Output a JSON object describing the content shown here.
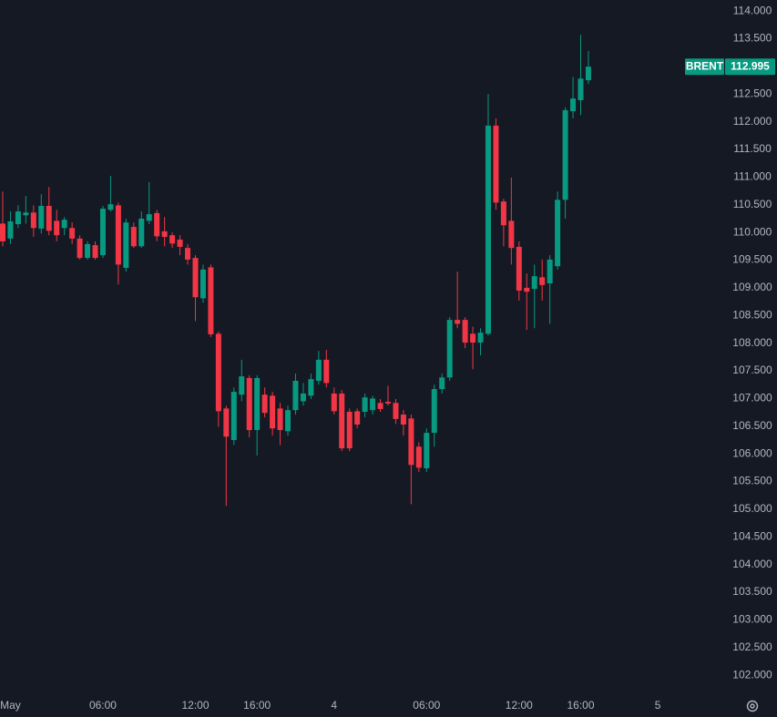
{
  "chart_data": {
    "type": "candlestick",
    "series_name": "BRENT",
    "last_price_label": "112.995",
    "up_color": "#089981",
    "down_color": "#f23645",
    "categories": [
      null,
      "May",
      null,
      null,
      null,
      null,
      null,
      null,
      null,
      null,
      null,
      null,
      null,
      "06:00",
      null,
      null,
      null,
      null,
      null,
      null,
      null,
      null,
      null,
      null,
      null,
      "12:00",
      null,
      null,
      null,
      null,
      null,
      null,
      null,
      "16:00",
      null,
      null,
      null,
      null,
      null,
      null,
      null,
      null,
      null,
      "4",
      null,
      null,
      null,
      null,
      null,
      null,
      null,
      null,
      null,
      null,
      null,
      "06:00",
      null,
      null,
      null,
      null,
      null,
      null,
      null,
      null,
      null,
      null,
      null,
      "12:00",
      null,
      null,
      null,
      null,
      null,
      null,
      null,
      "16:00",
      null,
      null,
      null,
      null,
      null,
      null,
      null,
      null,
      null,
      "5"
    ],
    "open": [
      110.16,
      109.89,
      110.15,
      110.31,
      110.36,
      110.07,
      110.48,
      110.21,
      110.08,
      110.08,
      109.89,
      109.54,
      109.77,
      109.59,
      110.41,
      110.49,
      109.36,
      110.1,
      109.75,
      110.21,
      110.35,
      110.02,
      109.95,
      109.87,
      109.72,
      109.54,
      108.81,
      109.37,
      108.17,
      106.82,
      106.25,
      107.07,
      107.37,
      106.43,
      107.07,
      107.05,
      106.82,
      106.41,
      106.79,
      106.95,
      107.05,
      107.32,
      107.7,
      107.09,
      107.09,
      106.76,
      106.77,
      106.76,
      106.79,
      106.92,
      106.94,
      106.92,
      106.71,
      106.64,
      106.13,
      105.74,
      106.38,
      107.17,
      107.38,
      108.42,
      108.42,
      108.17,
      108.01,
      108.17,
      111.93,
      110.56,
      110.21,
      109.74,
      109.0,
      108.98,
      109.19,
      109.08,
      109.39,
      110.59,
      112.19,
      112.39,
      112.75,
      null,
      null,
      null,
      null,
      null,
      null,
      null,
      null,
      null
    ],
    "high": [
      110.74,
      110.38,
      110.49,
      110.66,
      110.49,
      110.69,
      110.82,
      110.41,
      110.28,
      110.18,
      109.95,
      109.84,
      109.84,
      110.48,
      111.02,
      110.54,
      110.25,
      110.18,
      110.38,
      110.91,
      110.41,
      110.28,
      110.0,
      109.95,
      109.79,
      109.59,
      109.42,
      109.42,
      108.21,
      106.87,
      107.2,
      107.7,
      107.42,
      107.42,
      107.2,
      107.12,
      106.92,
      106.87,
      107.45,
      107.28,
      107.45,
      107.86,
      107.88,
      107.2,
      107.15,
      106.82,
      106.82,
      107.09,
      107.05,
      106.99,
      107.23,
      106.99,
      106.79,
      106.71,
      106.21,
      106.46,
      107.25,
      107.45,
      108.47,
      109.29,
      108.47,
      108.3,
      108.27,
      112.5,
      112.06,
      110.61,
      110.99,
      109.84,
      109.26,
      109.42,
      109.51,
      109.59,
      110.74,
      112.26,
      112.81,
      113.57,
      113.28,
      null,
      null,
      null,
      null,
      null,
      null,
      null,
      null,
      null
    ],
    "low": [
      109.75,
      109.79,
      110.08,
      110.16,
      109.92,
      109.98,
      109.95,
      109.84,
      109.95,
      109.79,
      109.51,
      109.51,
      109.51,
      109.54,
      110.38,
      109.06,
      109.29,
      109.72,
      109.72,
      110.15,
      109.84,
      109.75,
      109.72,
      109.59,
      109.42,
      108.4,
      108.73,
      108.11,
      106.49,
      105.06,
      106.16,
      106.95,
      106.3,
      105.97,
      106.66,
      106.33,
      106.16,
      106.33,
      106.71,
      106.87,
      106.99,
      107.25,
      107.2,
      106.71,
      106.05,
      106.05,
      106.46,
      106.66,
      106.71,
      106.76,
      106.87,
      106.54,
      106.33,
      105.09,
      105.67,
      105.67,
      106.13,
      107.09,
      107.32,
      108.27,
      107.91,
      107.53,
      107.78,
      108.14,
      110.41,
      109.75,
      109.42,
      108.77,
      108.24,
      108.27,
      108.77,
      108.35,
      109.33,
      110.25,
      112.06,
      112.12,
      112.68,
      null,
      null,
      null,
      null,
      null,
      null,
      null,
      null,
      null
    ],
    "close": [
      109.84,
      110.2,
      110.38,
      110.36,
      110.08,
      110.48,
      110.03,
      109.95,
      110.23,
      109.89,
      109.54,
      109.79,
      109.54,
      110.43,
      110.51,
      109.42,
      110.18,
      109.75,
      110.25,
      110.33,
      109.93,
      109.92,
      109.8,
      109.74,
      109.51,
      108.83,
      109.33,
      108.16,
      106.77,
      106.31,
      107.12,
      107.4,
      106.43,
      107.37,
      106.74,
      106.46,
      106.43,
      106.79,
      107.32,
      107.09,
      107.35,
      107.7,
      107.28,
      106.77,
      106.1,
      106.1,
      106.53,
      107.02,
      107.0,
      106.81,
      106.91,
      106.63,
      106.53,
      105.8,
      105.75,
      106.38,
      107.17,
      107.38,
      108.42,
      108.35,
      108.01,
      108.01,
      108.19,
      111.93,
      110.54,
      110.13,
      109.72,
      108.95,
      108.93,
      109.21,
      109.05,
      109.51,
      110.59,
      112.21,
      112.42,
      112.78,
      112.995,
      null,
      null,
      null,
      null,
      null,
      null,
      null,
      null,
      null
    ],
    "ylim": [
      101.69,
      114.2
    ],
    "yticks": [
      {
        "value": 102,
        "label": "102.000"
      },
      {
        "value": 102.5,
        "label": "102.500"
      },
      {
        "value": 103,
        "label": "103.000"
      },
      {
        "value": 103.5,
        "label": "103.500"
      },
      {
        "value": 104,
        "label": "104.000"
      },
      {
        "value": 104.5,
        "label": "104.500"
      },
      {
        "value": 105,
        "label": "105.000"
      },
      {
        "value": 105.5,
        "label": "105.500"
      },
      {
        "value": 106,
        "label": "106.000"
      },
      {
        "value": 106.5,
        "label": "106.500"
      },
      {
        "value": 107,
        "label": "107.000"
      },
      {
        "value": 107.5,
        "label": "107.500"
      },
      {
        "value": 108,
        "label": "108.000"
      },
      {
        "value": 108.5,
        "label": "108.500"
      },
      {
        "value": 109,
        "label": "109.000"
      },
      {
        "value": 109.5,
        "label": "109.500"
      },
      {
        "value": 110,
        "label": "110.000"
      },
      {
        "value": 110.5,
        "label": "110.500"
      },
      {
        "value": 111,
        "label": "111.000"
      },
      {
        "value": 111.5,
        "label": "111.500"
      },
      {
        "value": 112,
        "label": "112.000"
      },
      {
        "value": 112.5,
        "label": "112.500"
      },
      {
        "value": 113,
        "label": "113.000"
      },
      {
        "value": 113.5,
        "label": "113.500"
      },
      {
        "value": 114,
        "label": "114.000"
      }
    ],
    "grid": false
  }
}
